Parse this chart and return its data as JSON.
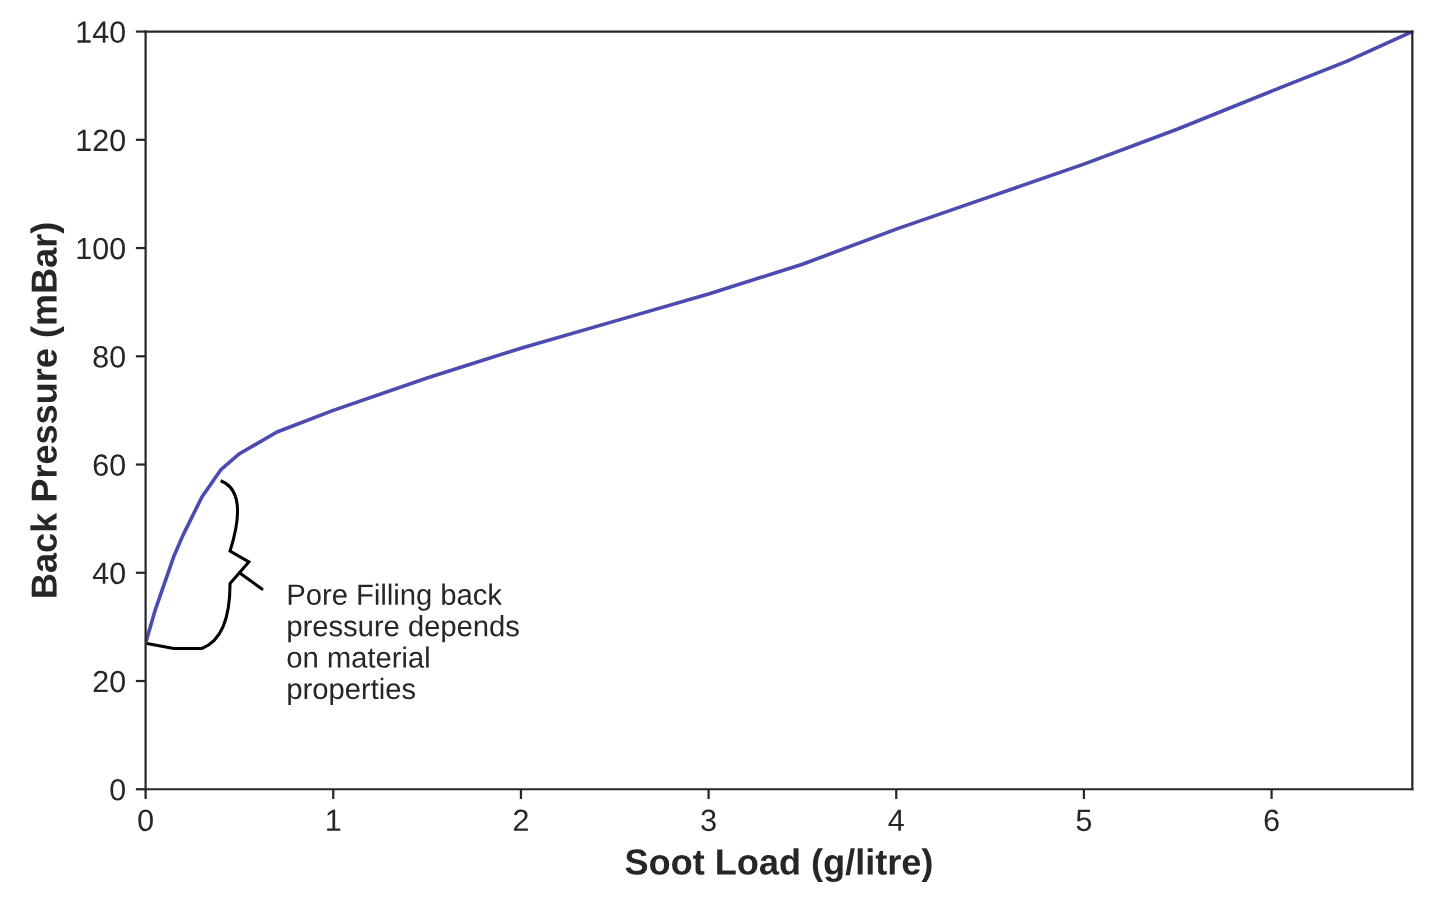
{
  "chart_data": {
    "type": "line",
    "xlabel": "Soot Load (g/litre)",
    "ylabel": "Back Pressure (mBar)",
    "x": [
      0,
      0.05,
      0.1,
      0.15,
      0.2,
      0.3,
      0.4,
      0.5,
      0.7,
      1,
      1.5,
      2,
      2.5,
      3,
      3.5,
      4,
      4.5,
      5,
      5.5,
      6,
      6.4,
      6.75
    ],
    "series": [
      {
        "color": "#4b4bb0",
        "values": [
          27,
          33,
          38,
          43,
          47,
          54,
          59,
          62,
          66,
          70,
          76,
          81.5,
          86.5,
          91.5,
          97,
          103.5,
          109.5,
          115.5,
          122,
          129,
          134.5,
          140
        ]
      }
    ],
    "xlim": [
      0,
      6.75
    ],
    "ylim": [
      0,
      140
    ],
    "xticks": [
      0,
      1,
      2,
      3,
      4,
      5,
      6
    ],
    "yticks": [
      0,
      20,
      40,
      60,
      80,
      100,
      120,
      140
    ],
    "grid": false,
    "legend": false,
    "marker": "none",
    "line_style": "solid",
    "annotations": [
      "Pore Filling back\npressure depends\non material\nproperties"
    ]
  }
}
